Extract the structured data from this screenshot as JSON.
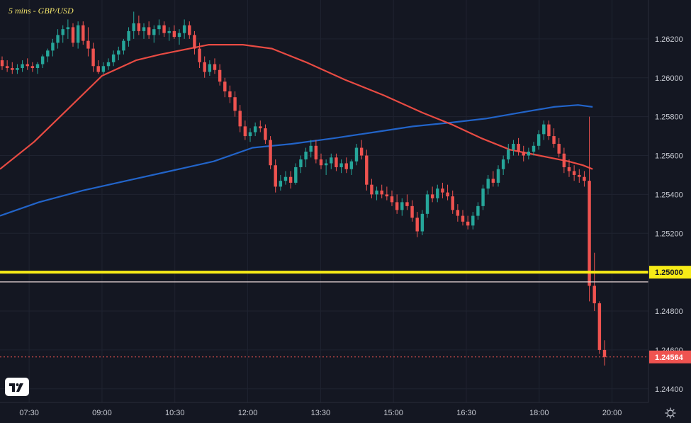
{
  "chart_data": {
    "type": "candlestick",
    "title": "5 mins - GBP/USD",
    "ylim": [
      1.2433,
      1.264
    ],
    "y_ticks": [
      "1.26200",
      "1.26000",
      "1.25800",
      "1.25600",
      "1.25400",
      "1.25200",
      "1.24800",
      "1.24600",
      "1.24400"
    ],
    "y_tick_values": [
      1.262,
      1.26,
      1.258,
      1.256,
      1.254,
      1.252,
      1.248,
      1.246,
      1.244
    ],
    "x_ticks": [
      "07:30",
      "09:00",
      "10:30",
      "12:00",
      "13:30",
      "15:00",
      "16:30",
      "18:00",
      "20:00"
    ],
    "x_tick_hours": [
      7.5,
      9.0,
      10.5,
      12.0,
      13.5,
      15.0,
      16.5,
      18.0,
      19.5
    ],
    "xlim_hours": [
      6.9,
      20.25
    ],
    "level_line": {
      "value": 1.25,
      "label": "1.25000",
      "color": "#f7eb17"
    },
    "reference_line": {
      "value": 1.2495,
      "color": "#e8d6d6"
    },
    "last_price": {
      "value": 1.24564,
      "label": "1.24564",
      "color": "#ef5350"
    },
    "colors": {
      "up": "#26a69a",
      "down": "#ef5350",
      "ma_fast": "#e84b43",
      "ma_slow": "#2264c9"
    },
    "ma_fast": [
      [
        6.9,
        1.2553
      ],
      [
        7.6,
        1.2567
      ],
      [
        8.3,
        1.2584
      ],
      [
        9.0,
        1.2601
      ],
      [
        9.7,
        1.2609
      ],
      [
        10.2,
        1.2612
      ],
      [
        10.6,
        1.2614
      ],
      [
        11.2,
        1.2617
      ],
      [
        11.9,
        1.2617
      ],
      [
        12.5,
        1.2615
      ],
      [
        13.2,
        1.2608
      ],
      [
        14.0,
        1.2599
      ],
      [
        14.8,
        1.2591
      ],
      [
        15.6,
        1.2582
      ],
      [
        16.2,
        1.2576
      ],
      [
        16.8,
        1.2569
      ],
      [
        17.4,
        1.2563
      ],
      [
        18.0,
        1.256
      ],
      [
        18.6,
        1.2557
      ],
      [
        18.9,
        1.2555
      ],
      [
        19.1,
        1.2553
      ]
    ],
    "ma_slow": [
      [
        6.9,
        1.2529
      ],
      [
        7.7,
        1.2536
      ],
      [
        8.6,
        1.2542
      ],
      [
        9.5,
        1.2547
      ],
      [
        10.4,
        1.2552
      ],
      [
        11.3,
        1.2557
      ],
      [
        12.1,
        1.2564
      ],
      [
        12.9,
        1.2566
      ],
      [
        13.8,
        1.2569
      ],
      [
        14.6,
        1.2572
      ],
      [
        15.4,
        1.2575
      ],
      [
        16.2,
        1.2577
      ],
      [
        16.9,
        1.2579
      ],
      [
        17.6,
        1.2582
      ],
      [
        18.3,
        1.2585
      ],
      [
        18.8,
        1.2586
      ],
      [
        19.1,
        1.2585
      ]
    ],
    "candles": [
      [
        1.2609,
        1.2611,
        1.2604,
        1.2606
      ],
      [
        1.2606,
        1.2609,
        1.2603,
        1.2605
      ],
      [
        1.2605,
        1.2608,
        1.2602,
        1.2604
      ],
      [
        1.2604,
        1.2607,
        1.2602,
        1.2605
      ],
      [
        1.2605,
        1.2609,
        1.2603,
        1.2607
      ],
      [
        1.2607,
        1.261,
        1.2604,
        1.2606
      ],
      [
        1.2606,
        1.2608,
        1.2603,
        1.2605
      ],
      [
        1.2605,
        1.2608,
        1.2602,
        1.2607
      ],
      [
        1.2607,
        1.2612,
        1.2605,
        1.2611
      ],
      [
        1.2611,
        1.2615,
        1.2608,
        1.2614
      ],
      [
        1.2614,
        1.262,
        1.2611,
        1.2618
      ],
      [
        1.2618,
        1.2625,
        1.2615,
        1.2622
      ],
      [
        1.2622,
        1.2627,
        1.2618,
        1.2625
      ],
      [
        1.2625,
        1.263,
        1.262,
        1.2626
      ],
      [
        1.2626,
        1.2628,
        1.2616,
        1.2618
      ],
      [
        1.2618,
        1.2629,
        1.2615,
        1.2627
      ],
      [
        1.2627,
        1.2629,
        1.2617,
        1.2619
      ],
      [
        1.2619,
        1.2626,
        1.2611,
        1.2615
      ],
      [
        1.2615,
        1.2618,
        1.2603,
        1.2606
      ],
      [
        1.2606,
        1.2609,
        1.2602,
        1.2603
      ],
      [
        1.2603,
        1.2608,
        1.2602,
        1.2606
      ],
      [
        1.2606,
        1.261,
        1.2604,
        1.2608
      ],
      [
        1.2608,
        1.2614,
        1.2606,
        1.2612
      ],
      [
        1.2612,
        1.2616,
        1.2609,
        1.2614
      ],
      [
        1.2614,
        1.262,
        1.2612,
        1.2619
      ],
      [
        1.2619,
        1.2626,
        1.2616,
        1.2624
      ],
      [
        1.2624,
        1.2634,
        1.262,
        1.2628
      ],
      [
        1.2628,
        1.2632,
        1.2622,
        1.2624
      ],
      [
        1.2624,
        1.2628,
        1.262,
        1.2626
      ],
      [
        1.2626,
        1.2629,
        1.262,
        1.2622
      ],
      [
        1.2622,
        1.2627,
        1.2618,
        1.2625
      ],
      [
        1.2625,
        1.263,
        1.2622,
        1.2627
      ],
      [
        1.2627,
        1.2629,
        1.2621,
        1.2623
      ],
      [
        1.2623,
        1.2626,
        1.2619,
        1.2624
      ],
      [
        1.2624,
        1.2627,
        1.262,
        1.2621
      ],
      [
        1.2621,
        1.2625,
        1.2617,
        1.2623
      ],
      [
        1.2623,
        1.263,
        1.262,
        1.2627
      ],
      [
        1.2627,
        1.2629,
        1.262,
        1.2622
      ],
      [
        1.2622,
        1.2624,
        1.2612,
        1.2615
      ],
      [
        1.2615,
        1.2618,
        1.2605,
        1.2608
      ],
      [
        1.2608,
        1.2611,
        1.26,
        1.2603
      ],
      [
        1.2603,
        1.2609,
        1.2601,
        1.2607
      ],
      [
        1.2607,
        1.261,
        1.2602,
        1.2604
      ],
      [
        1.2604,
        1.2607,
        1.2596,
        1.2598
      ],
      [
        1.2598,
        1.26,
        1.259,
        1.2593
      ],
      [
        1.2593,
        1.2596,
        1.2587,
        1.259
      ],
      [
        1.259,
        1.2593,
        1.258,
        1.2583
      ],
      [
        1.2583,
        1.2586,
        1.2572,
        1.2575
      ],
      [
        1.2575,
        1.2578,
        1.2568,
        1.257
      ],
      [
        1.257,
        1.2574,
        1.2567,
        1.2572
      ],
      [
        1.2572,
        1.2577,
        1.257,
        1.2575
      ],
      [
        1.2575,
        1.2578,
        1.2572,
        1.2574
      ],
      [
        1.2574,
        1.2576,
        1.2566,
        1.2568
      ],
      [
        1.2568,
        1.257,
        1.2553,
        1.2555
      ],
      [
        1.2555,
        1.2558,
        1.2541,
        1.2544
      ],
      [
        1.2544,
        1.255,
        1.2542,
        1.2547
      ],
      [
        1.2547,
        1.2552,
        1.2545,
        1.2549
      ],
      [
        1.2549,
        1.2552,
        1.2543,
        1.2546
      ],
      [
        1.2546,
        1.2556,
        1.2545,
        1.2554
      ],
      [
        1.2554,
        1.256,
        1.2551,
        1.2558
      ],
      [
        1.2558,
        1.2564,
        1.2554,
        1.2562
      ],
      [
        1.2562,
        1.2568,
        1.2559,
        1.2565
      ],
      [
        1.2565,
        1.2568,
        1.2556,
        1.2558
      ],
      [
        1.2558,
        1.2561,
        1.2553,
        1.2555
      ],
      [
        1.2555,
        1.2558,
        1.255,
        1.2556
      ],
      [
        1.2556,
        1.2561,
        1.2553,
        1.2559
      ],
      [
        1.2559,
        1.2561,
        1.2552,
        1.2554
      ],
      [
        1.2554,
        1.2558,
        1.2551,
        1.2556
      ],
      [
        1.2556,
        1.2559,
        1.2551,
        1.2553
      ],
      [
        1.2553,
        1.2558,
        1.255,
        1.2557
      ],
      [
        1.2557,
        1.2566,
        1.2555,
        1.2564
      ],
      [
        1.2564,
        1.2568,
        1.2558,
        1.256
      ],
      [
        1.256,
        1.2563,
        1.2542,
        1.2545
      ],
      [
        1.2545,
        1.2548,
        1.2538,
        1.254
      ],
      [
        1.254,
        1.2544,
        1.2537,
        1.2542
      ],
      [
        1.2542,
        1.2545,
        1.2538,
        1.254
      ],
      [
        1.254,
        1.2544,
        1.2537,
        1.2539
      ],
      [
        1.2539,
        1.2542,
        1.2534,
        1.2536
      ],
      [
        1.2536,
        1.254,
        1.253,
        1.2532
      ],
      [
        1.2532,
        1.2538,
        1.2529,
        1.2536
      ],
      [
        1.2536,
        1.254,
        1.2532,
        1.2534
      ],
      [
        1.2534,
        1.2537,
        1.2526,
        1.2528
      ],
      [
        1.2528,
        1.2531,
        1.2518,
        1.2521
      ],
      [
        1.2521,
        1.2532,
        1.2519,
        1.253
      ],
      [
        1.253,
        1.2542,
        1.2528,
        1.254
      ],
      [
        1.254,
        1.2544,
        1.2536,
        1.2538
      ],
      [
        1.2538,
        1.2545,
        1.2536,
        1.2543
      ],
      [
        1.2543,
        1.2546,
        1.2538,
        1.2541
      ],
      [
        1.2541,
        1.2545,
        1.2537,
        1.2539
      ],
      [
        1.2539,
        1.2542,
        1.253,
        1.2532
      ],
      [
        1.2532,
        1.2535,
        1.2526,
        1.2529
      ],
      [
        1.2529,
        1.2532,
        1.2524,
        1.2526
      ],
      [
        1.2526,
        1.2529,
        1.2522,
        1.2524
      ],
      [
        1.2524,
        1.2531,
        1.2522,
        1.2529
      ],
      [
        1.2529,
        1.2536,
        1.2527,
        1.2534
      ],
      [
        1.2534,
        1.2545,
        1.2532,
        1.2543
      ],
      [
        1.2543,
        1.255,
        1.254,
        1.2548
      ],
      [
        1.2548,
        1.2552,
        1.2544,
        1.2546
      ],
      [
        1.2546,
        1.2555,
        1.2544,
        1.2553
      ],
      [
        1.2553,
        1.256,
        1.255,
        1.2558
      ],
      [
        1.2558,
        1.2566,
        1.2556,
        1.2563
      ],
      [
        1.2563,
        1.2568,
        1.256,
        1.2566
      ],
      [
        1.2566,
        1.2569,
        1.256,
        1.2562
      ],
      [
        1.2562,
        1.2565,
        1.2557,
        1.256
      ],
      [
        1.256,
        1.2564,
        1.2558,
        1.2562
      ],
      [
        1.2562,
        1.2567,
        1.256,
        1.2565
      ],
      [
        1.2565,
        1.2573,
        1.2563,
        1.2571
      ],
      [
        1.2571,
        1.2578,
        1.2568,
        1.2576
      ],
      [
        1.2576,
        1.2578,
        1.2568,
        1.257
      ],
      [
        1.257,
        1.2574,
        1.2564,
        1.2566
      ],
      [
        1.2566,
        1.2569,
        1.2559,
        1.2561
      ],
      [
        1.2561,
        1.2564,
        1.2551,
        1.2554
      ],
      [
        1.2554,
        1.2558,
        1.2549,
        1.2552
      ],
      [
        1.2552,
        1.2555,
        1.2547,
        1.255
      ],
      [
        1.255,
        1.2553,
        1.2546,
        1.2549
      ],
      [
        1.2549,
        1.2552,
        1.2544,
        1.2547
      ],
      [
        1.2547,
        1.258,
        1.2485,
        1.2493
      ],
      [
        1.2493,
        1.251,
        1.248,
        1.2484
      ],
      [
        1.2484,
        1.2485,
        1.2458,
        1.246
      ],
      [
        1.246,
        1.2465,
        1.2452,
        1.24564
      ]
    ]
  }
}
